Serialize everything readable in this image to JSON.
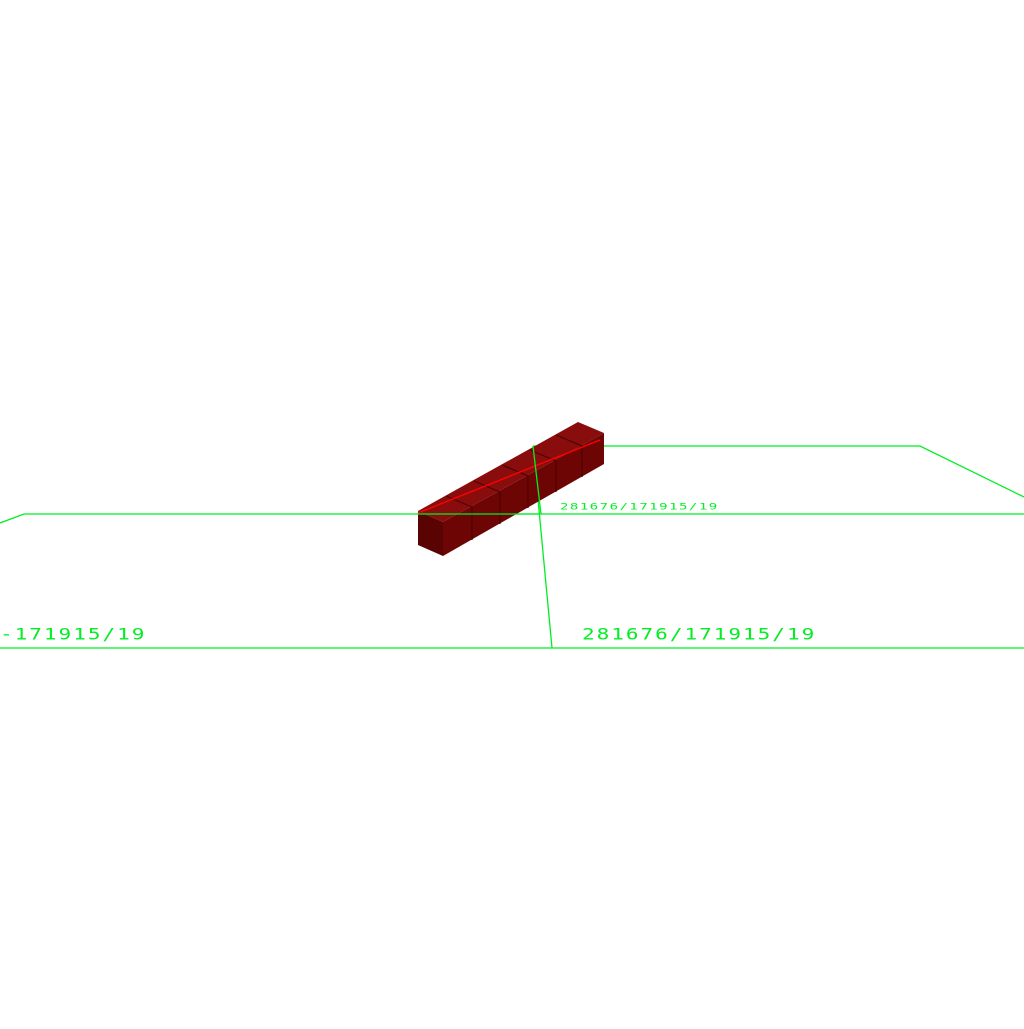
{
  "scene": {
    "background_color": "#ffffff",
    "grid_line_color": "#00ee22",
    "object_color": "#7a0606",
    "object_highlight_color": "#ff0000",
    "labels": {
      "left_tile_label": "-171915/19",
      "right_tile_label": "281676/171915/19",
      "back_tile_label": "281676/171915/19"
    }
  }
}
